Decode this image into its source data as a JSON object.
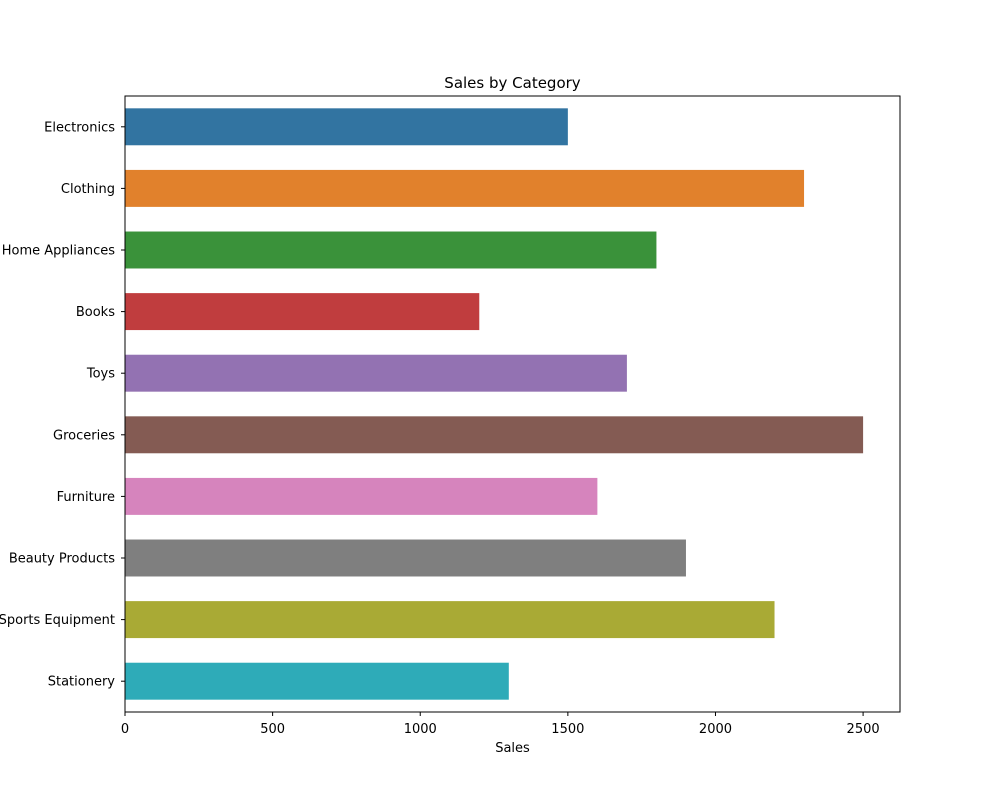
{
  "chart_data": {
    "type": "bar",
    "orientation": "horizontal",
    "title": "Sales by Category",
    "xlabel": "Sales",
    "ylabel": "",
    "categories": [
      "Electronics",
      "Clothing",
      "Home Appliances",
      "Books",
      "Toys",
      "Groceries",
      "Furniture",
      "Beauty Products",
      "Sports Equipment",
      "Stationery"
    ],
    "values": [
      1500,
      2300,
      1800,
      1200,
      1700,
      2500,
      1600,
      1900,
      2200,
      1300
    ],
    "colors": [
      "#3274a1",
      "#e1812c",
      "#3a923a",
      "#c03d3e",
      "#9372b2",
      "#845b53",
      "#d684bd",
      "#7f7f7f",
      "#a9aa35",
      "#2eabb8"
    ],
    "xlim": [
      0,
      2625
    ],
    "xticks": [
      0,
      500,
      1000,
      1500,
      2000,
      2500
    ],
    "grid": false,
    "legend": "none"
  }
}
